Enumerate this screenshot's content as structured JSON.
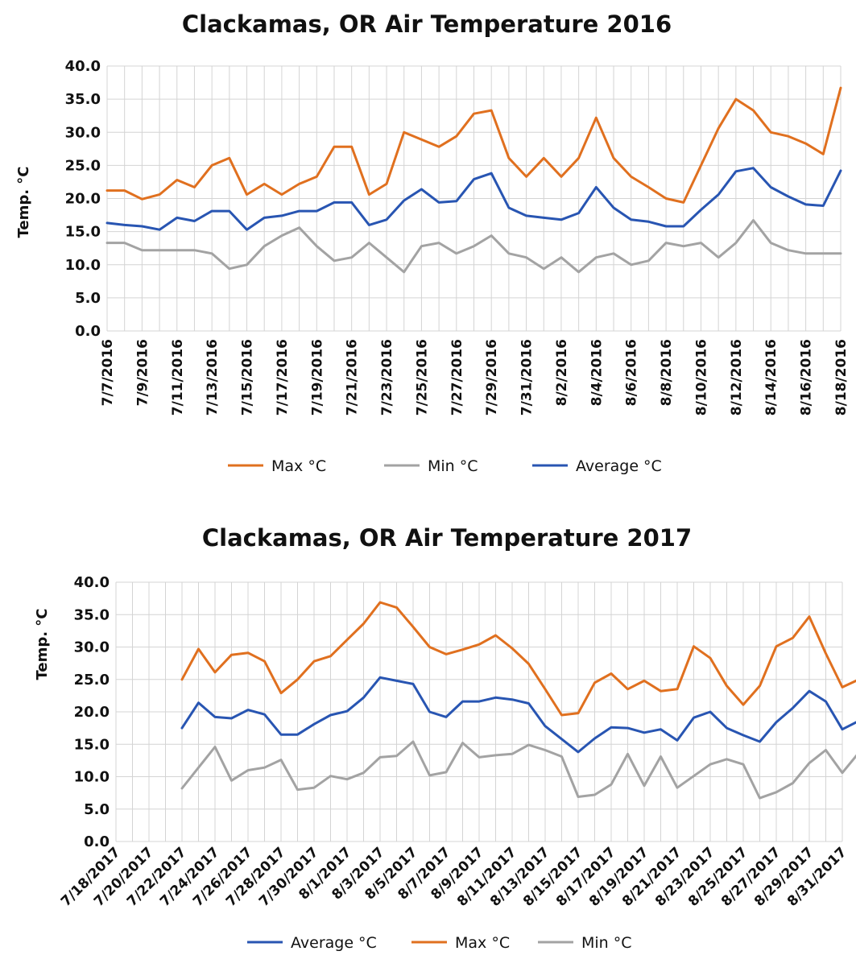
{
  "chart_data": [
    {
      "type": "line",
      "title": "Clackamas, OR Air Temperature 2016",
      "xlabel": "",
      "ylabel": "Temp. °C",
      "ylim": [
        0,
        40
      ],
      "yticks": [
        "0.0",
        "5.0",
        "10.0",
        "15.0",
        "20.0",
        "25.0",
        "30.0",
        "35.0",
        "40.0"
      ],
      "x_tick_labels": [
        "7/7/2016",
        "7/9/2016",
        "7/11/2016",
        "7/13/2016",
        "7/15/2016",
        "7/17/2016",
        "7/19/2016",
        "7/21/2016",
        "7/23/2016",
        "7/25/2016",
        "7/27/2016",
        "7/29/2016",
        "7/31/2016",
        "8/2/2016",
        "8/4/2016",
        "8/6/2016",
        "8/8/2016",
        "8/10/2016",
        "8/12/2016",
        "8/14/2016",
        "8/16/2016",
        "8/18/2016"
      ],
      "n_days": 43,
      "legend": "bottom",
      "series": [
        {
          "name": "Max °C",
          "color": "#e0701f",
          "values": [
            21.2,
            21.2,
            19.9,
            20.6,
            22.8,
            21.7,
            25.0,
            26.1,
            20.6,
            22.2,
            20.6,
            22.2,
            23.3,
            27.8,
            27.8,
            20.6,
            22.2,
            30.0,
            28.9,
            27.8,
            29.4,
            32.8,
            33.3,
            26.1,
            23.3,
            26.1,
            23.3,
            26.1,
            32.2,
            26.1,
            23.3,
            21.7,
            20.0,
            19.4,
            25.0,
            30.6,
            35.0,
            33.3,
            30.0,
            29.4,
            28.3,
            26.7,
            36.7
          ]
        },
        {
          "name": "Min °C",
          "color": "#a3a3a3",
          "values": [
            13.3,
            13.3,
            12.2,
            12.2,
            12.2,
            12.2,
            11.7,
            9.4,
            10.0,
            12.8,
            14.4,
            15.6,
            12.8,
            10.6,
            11.1,
            13.3,
            11.1,
            8.9,
            12.8,
            13.3,
            11.7,
            12.8,
            14.4,
            11.7,
            11.1,
            9.4,
            11.1,
            8.9,
            11.1,
            11.7,
            10.0,
            10.6,
            13.3,
            12.8,
            13.3,
            11.1,
            13.3,
            16.7,
            13.3,
            12.2,
            11.7,
            11.7,
            11.7
          ]
        },
        {
          "name": "Average °C",
          "color": "#2855b2",
          "values": [
            16.3,
            16.0,
            15.8,
            15.3,
            17.1,
            16.6,
            18.1,
            18.1,
            15.3,
            17.1,
            17.4,
            18.1,
            18.1,
            19.4,
            19.4,
            16.0,
            16.8,
            19.7,
            21.4,
            19.4,
            19.6,
            22.9,
            23.8,
            18.6,
            17.4,
            17.1,
            16.8,
            17.8,
            21.7,
            18.6,
            16.8,
            16.5,
            15.8,
            15.8,
            18.3,
            20.6,
            24.1,
            24.6,
            21.7,
            20.3,
            19.1,
            18.9,
            24.2
          ]
        }
      ]
    },
    {
      "type": "line",
      "title": "Clackamas, OR Air Temperature 2017",
      "xlabel": "",
      "ylabel": "Temp. °C",
      "ylim": [
        0,
        40
      ],
      "yticks": [
        "0.0",
        "5.0",
        "10.0",
        "15.0",
        "20.0",
        "25.0",
        "30.0",
        "35.0",
        "40.0"
      ],
      "x_tick_labels": [
        "7/18/2017",
        "7/20/2017",
        "7/22/2017",
        "7/24/2017",
        "7/26/2017",
        "7/28/2017",
        "7/30/2017",
        "8/1/2017",
        "8/3/2017",
        "8/5/2017",
        "8/7/2017",
        "8/9/2017",
        "8/11/2017",
        "8/13/2017",
        "8/15/2017",
        "8/17/2017",
        "8/19/2017",
        "8/21/2017",
        "8/23/2017",
        "8/25/2017",
        "8/27/2017",
        "8/29/2017",
        "8/31/2017"
      ],
      "n_days": 45,
      "data_start_index": 4,
      "legend": "bottom",
      "series": [
        {
          "name": "Average °C",
          "color": "#2855b2",
          "values": [
            17.5,
            21.4,
            19.2,
            19.0,
            20.3,
            19.6,
            16.5,
            16.5,
            18.1,
            19.5,
            20.1,
            22.2,
            25.3,
            24.8,
            24.3,
            20.0,
            19.2,
            21.6,
            21.6,
            22.2,
            21.9,
            21.3,
            17.8,
            15.8,
            13.8,
            15.9,
            17.6,
            17.5,
            16.8,
            17.3,
            15.6,
            19.1,
            20.0,
            17.5,
            16.4,
            15.4,
            18.4,
            20.6,
            23.2,
            21.6,
            17.3,
            18.6
          ]
        },
        {
          "name": "Max °C",
          "color": "#e0701f",
          "values": [
            25.0,
            29.7,
            26.1,
            28.8,
            29.1,
            27.8,
            22.9,
            25.0,
            27.8,
            28.6,
            31.1,
            33.6,
            36.9,
            36.1,
            33.1,
            30.0,
            28.9,
            29.6,
            30.4,
            31.8,
            29.8,
            27.4,
            23.5,
            19.5,
            19.8,
            24.5,
            25.9,
            23.5,
            24.8,
            23.2,
            23.5,
            30.1,
            28.3,
            24.0,
            21.1,
            24.0,
            30.1,
            31.4,
            34.7,
            29.0,
            23.8,
            25.0
          ]
        },
        {
          "name": "Min °C",
          "color": "#a3a3a3",
          "values": [
            8.2,
            11.4,
            14.6,
            9.4,
            11.0,
            11.4,
            12.6,
            8.0,
            8.3,
            10.1,
            9.6,
            10.6,
            13.0,
            13.2,
            15.4,
            10.2,
            10.7,
            15.2,
            13.0,
            13.3,
            13.5,
            14.9,
            14.1,
            13.1,
            6.9,
            7.2,
            8.8,
            13.5,
            8.6,
            13.1,
            8.3,
            10.1,
            11.9,
            12.7,
            11.9,
            6.7,
            7.6,
            9.0,
            12.1,
            14.1,
            10.6,
            13.7
          ]
        }
      ]
    }
  ]
}
